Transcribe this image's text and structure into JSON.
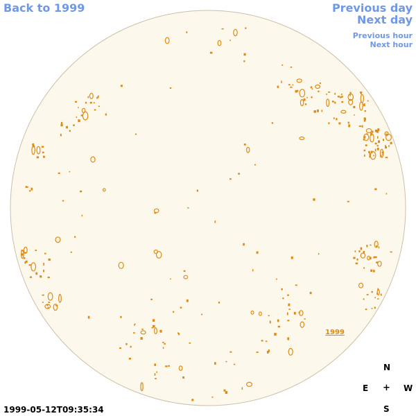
{
  "nav": {
    "back_label": "Back to 1999",
    "prev_day_label": "Previous day",
    "next_day_label": "Next day",
    "prev_hour_label": "Previous hour",
    "next_hour_label": "Next hour"
  },
  "map": {
    "disk_fill": "#fdf8ec",
    "disk_stroke": "#cdbfa8",
    "feature_color": "#e08a12",
    "link_color": "#6f98e6",
    "year_label": "1999"
  },
  "compass": {
    "north": "N",
    "east": "E",
    "center": "+",
    "west": "W",
    "south": "S"
  },
  "timestamp": "1999-05-12T09:35:34"
}
